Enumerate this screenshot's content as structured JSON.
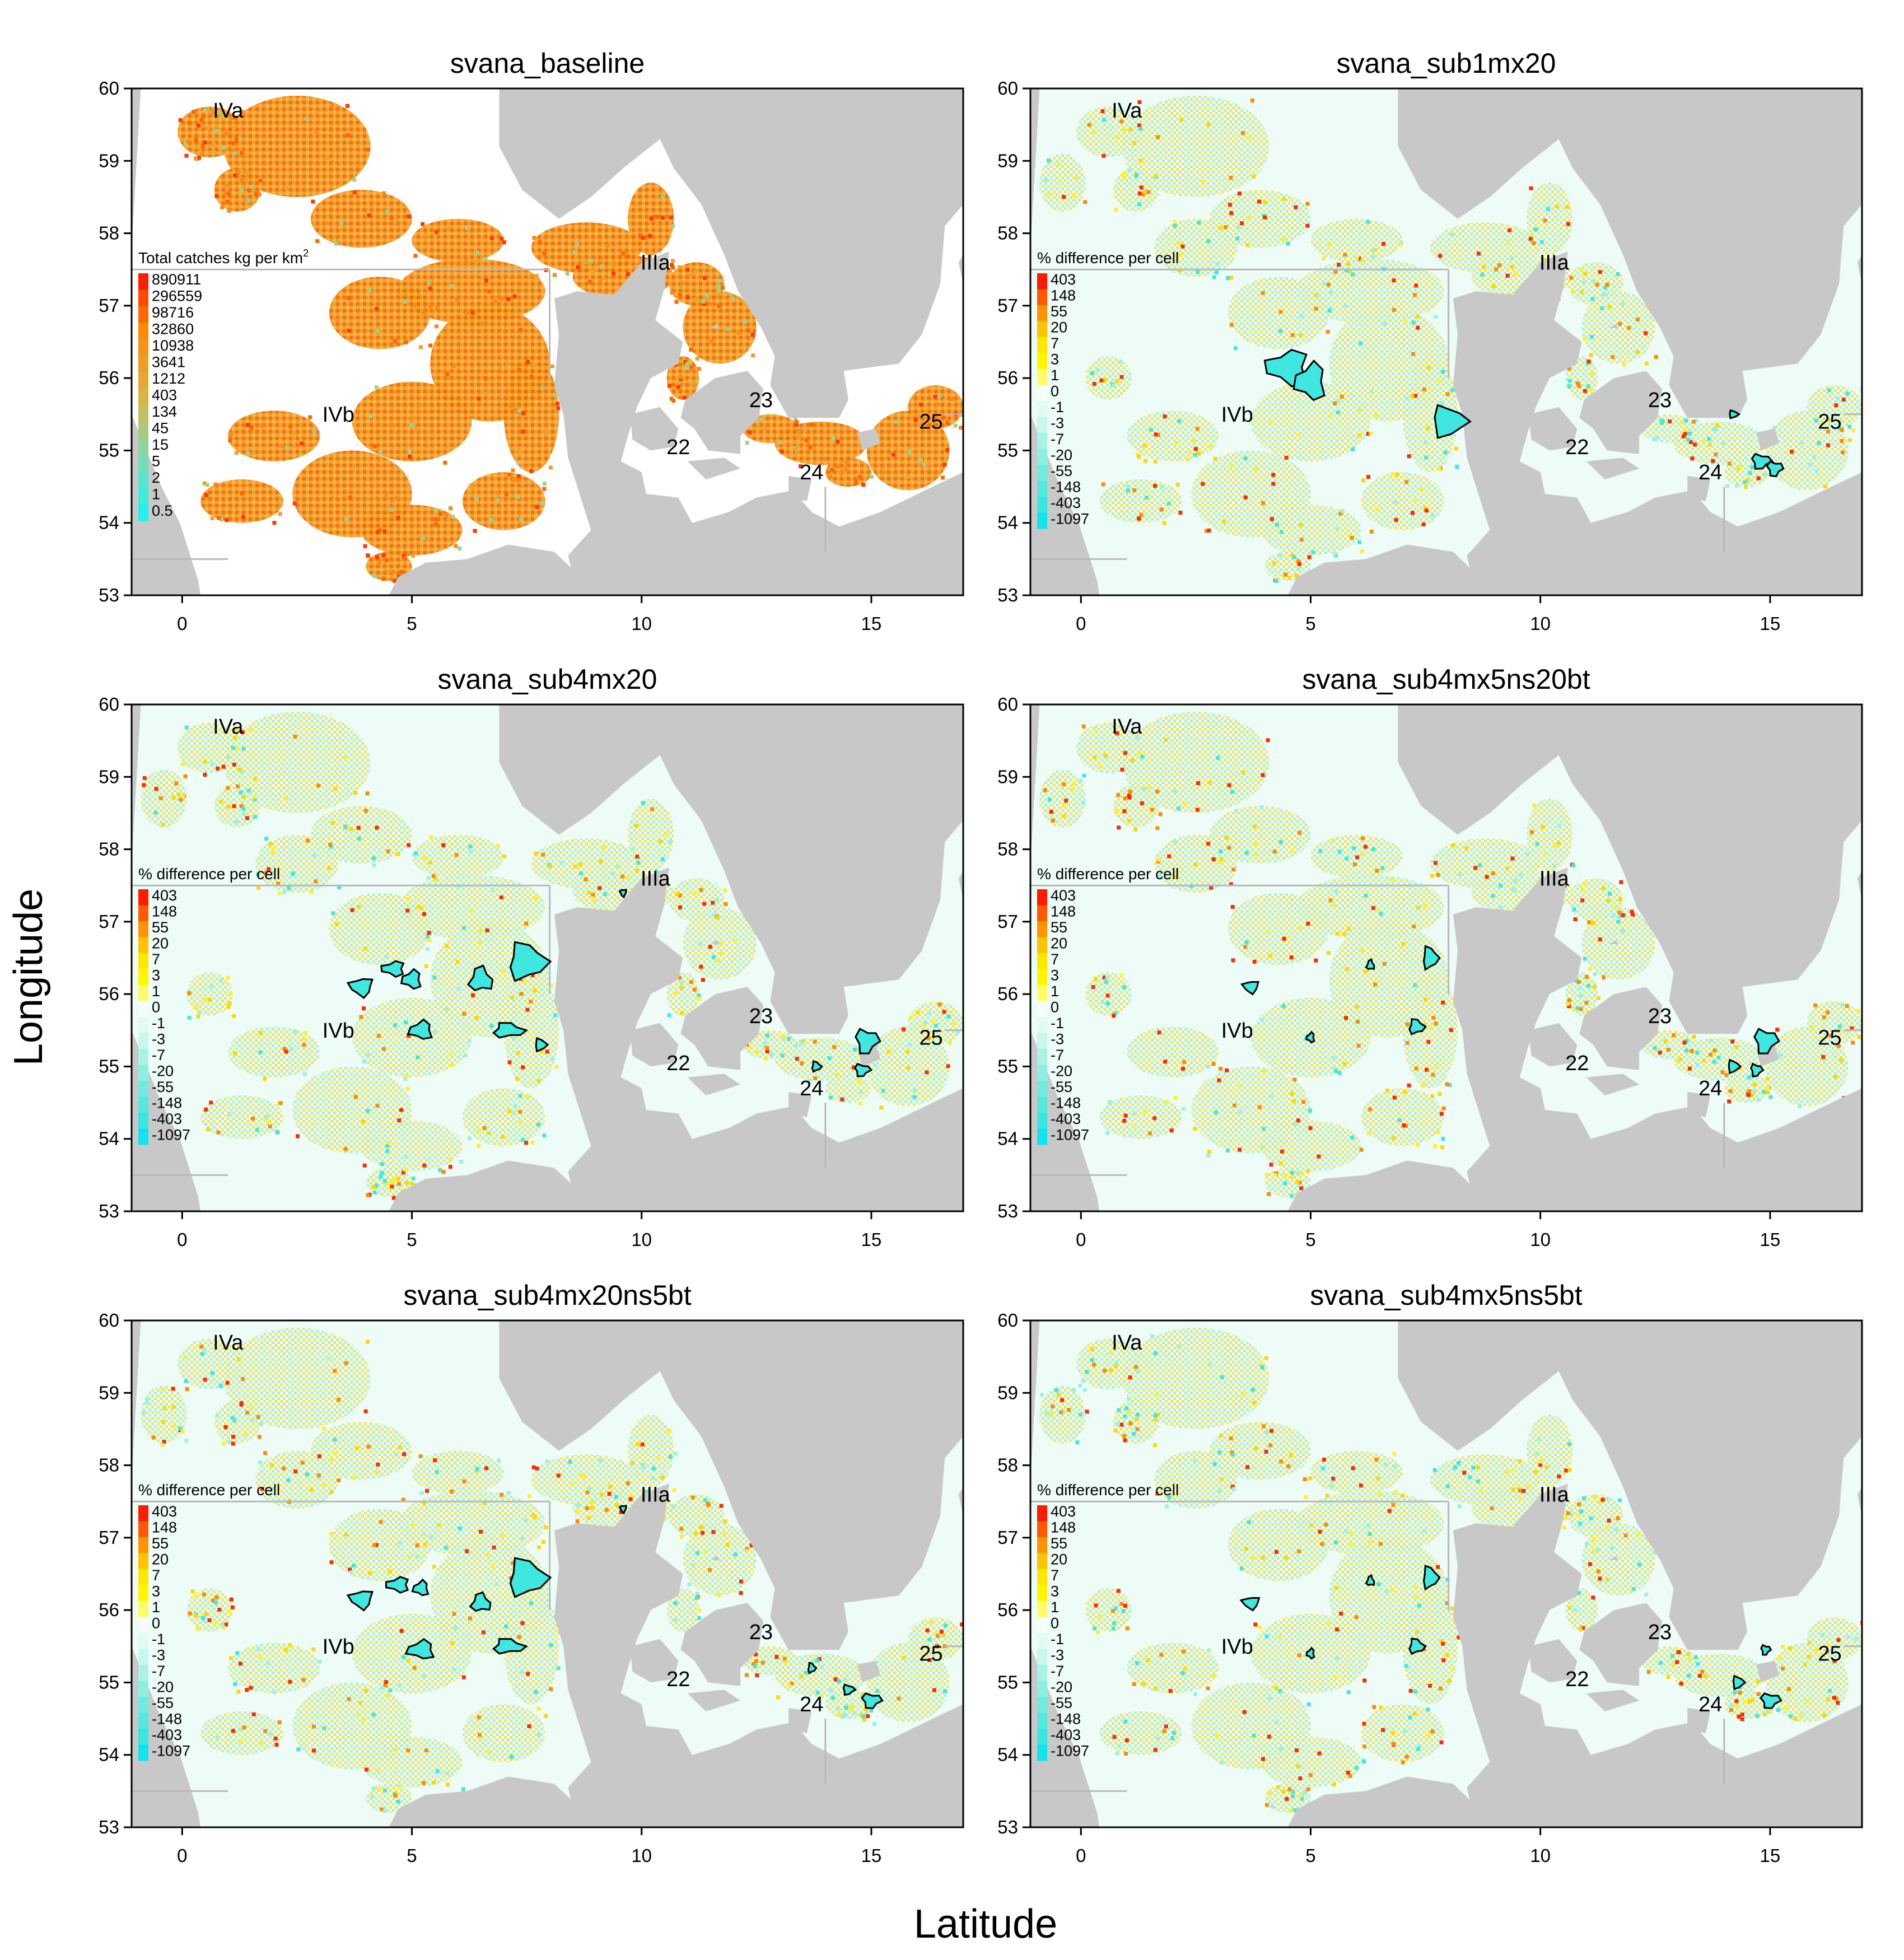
{
  "figure": {
    "xlabel": "Latitude",
    "ylabel": "Longitude"
  },
  "axes": {
    "x_ticks": [
      "0",
      "5",
      "10",
      "15"
    ],
    "y_ticks": [
      "53",
      "54",
      "55",
      "56",
      "57",
      "58",
      "59",
      "60"
    ],
    "xlim": [
      -1.1,
      17
    ],
    "ylim": [
      53,
      60
    ]
  },
  "colors": {
    "land": "#c8c8c8",
    "sea_zero": "#eefcf8",
    "ices_lines": "#b9b9b9",
    "closure_outline": "#000000",
    "closure_fill": "#3ee7e0"
  },
  "region_labels": [
    {
      "text": "IVa",
      "lon": 1.0,
      "lat": 59.7
    },
    {
      "text": "IVb",
      "lon": 3.4,
      "lat": 55.5
    },
    {
      "text": "IIIa",
      "lon": 10.3,
      "lat": 57.6
    },
    {
      "text": "22",
      "lon": 10.8,
      "lat": 55.05
    },
    {
      "text": "23",
      "lon": 12.6,
      "lat": 55.7
    },
    {
      "text": "24",
      "lon": 13.7,
      "lat": 54.7
    },
    {
      "text": "25",
      "lon": 16.3,
      "lat": 55.4
    }
  ],
  "legend_baseline": {
    "title": "Total catches kg per km",
    "title_sup": "2",
    "values": [
      "890911",
      "296559",
      "98716",
      "32860",
      "10938",
      "3641",
      "1212",
      "403",
      "134",
      "45",
      "15",
      "5",
      "2",
      "1",
      "0.5"
    ],
    "colors": [
      "#ff1d00",
      "#ff4a00",
      "#ff6a00",
      "#ff8a00",
      "#f29418",
      "#ec9f22",
      "#e4a933",
      "#d9b444",
      "#c3c05f",
      "#a8cb7b",
      "#8dd59b",
      "#6fdfb8",
      "#55e7cc",
      "#3ceddc",
      "#22f2ee"
    ]
  },
  "legend_diff": {
    "title": "% difference per cell",
    "values": [
      "403",
      "148",
      "55",
      "20",
      "7",
      "3",
      "1",
      "0",
      "-1",
      "-3",
      "-7",
      "-20",
      "-55",
      "-148",
      "-403",
      "-1097"
    ],
    "colors": [
      "#ff1a00",
      "#ff5a00",
      "#ff9400",
      "#ffc400",
      "#ffe800",
      "#fff700",
      "#fffc66",
      "#f5fdf8",
      "#e0fbf2",
      "#c8f7ec",
      "#a8f3e3",
      "#8cf0e1",
      "#70ece0",
      "#55e8df",
      "#38e6e2",
      "#10e4ee"
    ]
  },
  "chart_data": [
    {
      "type": "heatmap",
      "title": "svana_baseline",
      "xlabel": "Latitude",
      "ylabel": "Longitude",
      "xlim": [
        -1.1,
        17
      ],
      "ylim": [
        53,
        60
      ],
      "legend": "Total catches kg per km2",
      "closures": []
    },
    {
      "type": "heatmap",
      "title": "svana_sub1mx20",
      "xlabel": "Latitude",
      "ylabel": "Longitude",
      "xlim": [
        -1.1,
        17
      ],
      "ylim": [
        53,
        60
      ],
      "legend": "% difference per cell",
      "closures": [
        [
          4.5,
          56.15,
          0.55,
          0.28
        ],
        [
          5.0,
          55.95,
          0.4,
          0.3
        ],
        [
          8.0,
          55.4,
          0.45,
          0.25
        ],
        [
          14.8,
          54.85,
          0.25,
          0.12
        ],
        [
          15.1,
          54.75,
          0.2,
          0.12
        ],
        [
          14.2,
          55.5,
          0.12,
          0.06
        ]
      ]
    },
    {
      "type": "heatmap",
      "title": "svana_sub4mx20",
      "xlabel": "Latitude",
      "ylabel": "Longitude",
      "xlim": [
        -1.1,
        17
      ],
      "ylim": [
        53,
        60
      ],
      "legend": "% difference per cell",
      "closures": [
        [
          7.5,
          56.45,
          0.5,
          0.3
        ],
        [
          3.9,
          56.1,
          0.3,
          0.15
        ],
        [
          4.6,
          56.35,
          0.3,
          0.12
        ],
        [
          5.0,
          56.2,
          0.25,
          0.15
        ],
        [
          6.5,
          56.2,
          0.3,
          0.2
        ],
        [
          5.2,
          55.5,
          0.3,
          0.15
        ],
        [
          7.1,
          55.5,
          0.4,
          0.12
        ],
        [
          7.8,
          55.3,
          0.15,
          0.1
        ],
        [
          9.6,
          57.4,
          0.08,
          0.06
        ],
        [
          14.9,
          55.35,
          0.3,
          0.2
        ],
        [
          14.8,
          54.95,
          0.2,
          0.1
        ],
        [
          13.8,
          55.0,
          0.12,
          0.08
        ]
      ]
    },
    {
      "type": "heatmap",
      "title": "svana_sub4mx5ns20bt",
      "xlabel": "Latitude",
      "ylabel": "Longitude",
      "xlim": [
        -1.1,
        17
      ],
      "ylim": [
        53,
        60
      ],
      "legend": "% difference per cell",
      "closures": [
        [
          7.6,
          56.5,
          0.2,
          0.18
        ],
        [
          7.3,
          55.55,
          0.2,
          0.12
        ],
        [
          3.7,
          56.1,
          0.2,
          0.1
        ],
        [
          6.3,
          56.4,
          0.1,
          0.08
        ],
        [
          5.0,
          55.4,
          0.1,
          0.08
        ],
        [
          14.9,
          55.35,
          0.3,
          0.2
        ],
        [
          14.2,
          55.0,
          0.15,
          0.1
        ],
        [
          14.7,
          54.95,
          0.15,
          0.1
        ]
      ]
    },
    {
      "type": "heatmap",
      "title": "svana_sub4mx20ns5bt",
      "xlabel": "Latitude",
      "ylabel": "Longitude",
      "xlim": [
        -1.1,
        17
      ],
      "ylim": [
        53,
        60
      ],
      "legend": "% difference per cell",
      "closures": [
        [
          7.5,
          56.45,
          0.5,
          0.3
        ],
        [
          3.9,
          56.15,
          0.3,
          0.15
        ],
        [
          4.7,
          56.35,
          0.3,
          0.12
        ],
        [
          5.2,
          56.3,
          0.2,
          0.12
        ],
        [
          6.5,
          56.1,
          0.25,
          0.15
        ],
        [
          5.2,
          55.45,
          0.35,
          0.15
        ],
        [
          7.1,
          55.5,
          0.4,
          0.12
        ],
        [
          15.0,
          54.75,
          0.25,
          0.12
        ],
        [
          14.5,
          54.9,
          0.15,
          0.08
        ],
        [
          13.7,
          55.2,
          0.1,
          0.08
        ],
        [
          9.6,
          57.4,
          0.08,
          0.06
        ]
      ]
    },
    {
      "type": "heatmap",
      "title": "svana_sub4mx5ns5bt",
      "xlabel": "Latitude",
      "ylabel": "Longitude",
      "xlim": [
        -1.1,
        17
      ],
      "ylim": [
        53,
        60
      ],
      "legend": "% difference per cell",
      "closures": [
        [
          7.6,
          56.45,
          0.2,
          0.18
        ],
        [
          7.3,
          55.5,
          0.2,
          0.12
        ],
        [
          3.7,
          56.1,
          0.22,
          0.1
        ],
        [
          6.3,
          56.4,
          0.1,
          0.08
        ],
        [
          5.0,
          55.4,
          0.1,
          0.08
        ],
        [
          15.0,
          54.75,
          0.25,
          0.12
        ],
        [
          14.3,
          55.0,
          0.15,
          0.1
        ],
        [
          14.9,
          55.45,
          0.12,
          0.08
        ]
      ]
    }
  ]
}
